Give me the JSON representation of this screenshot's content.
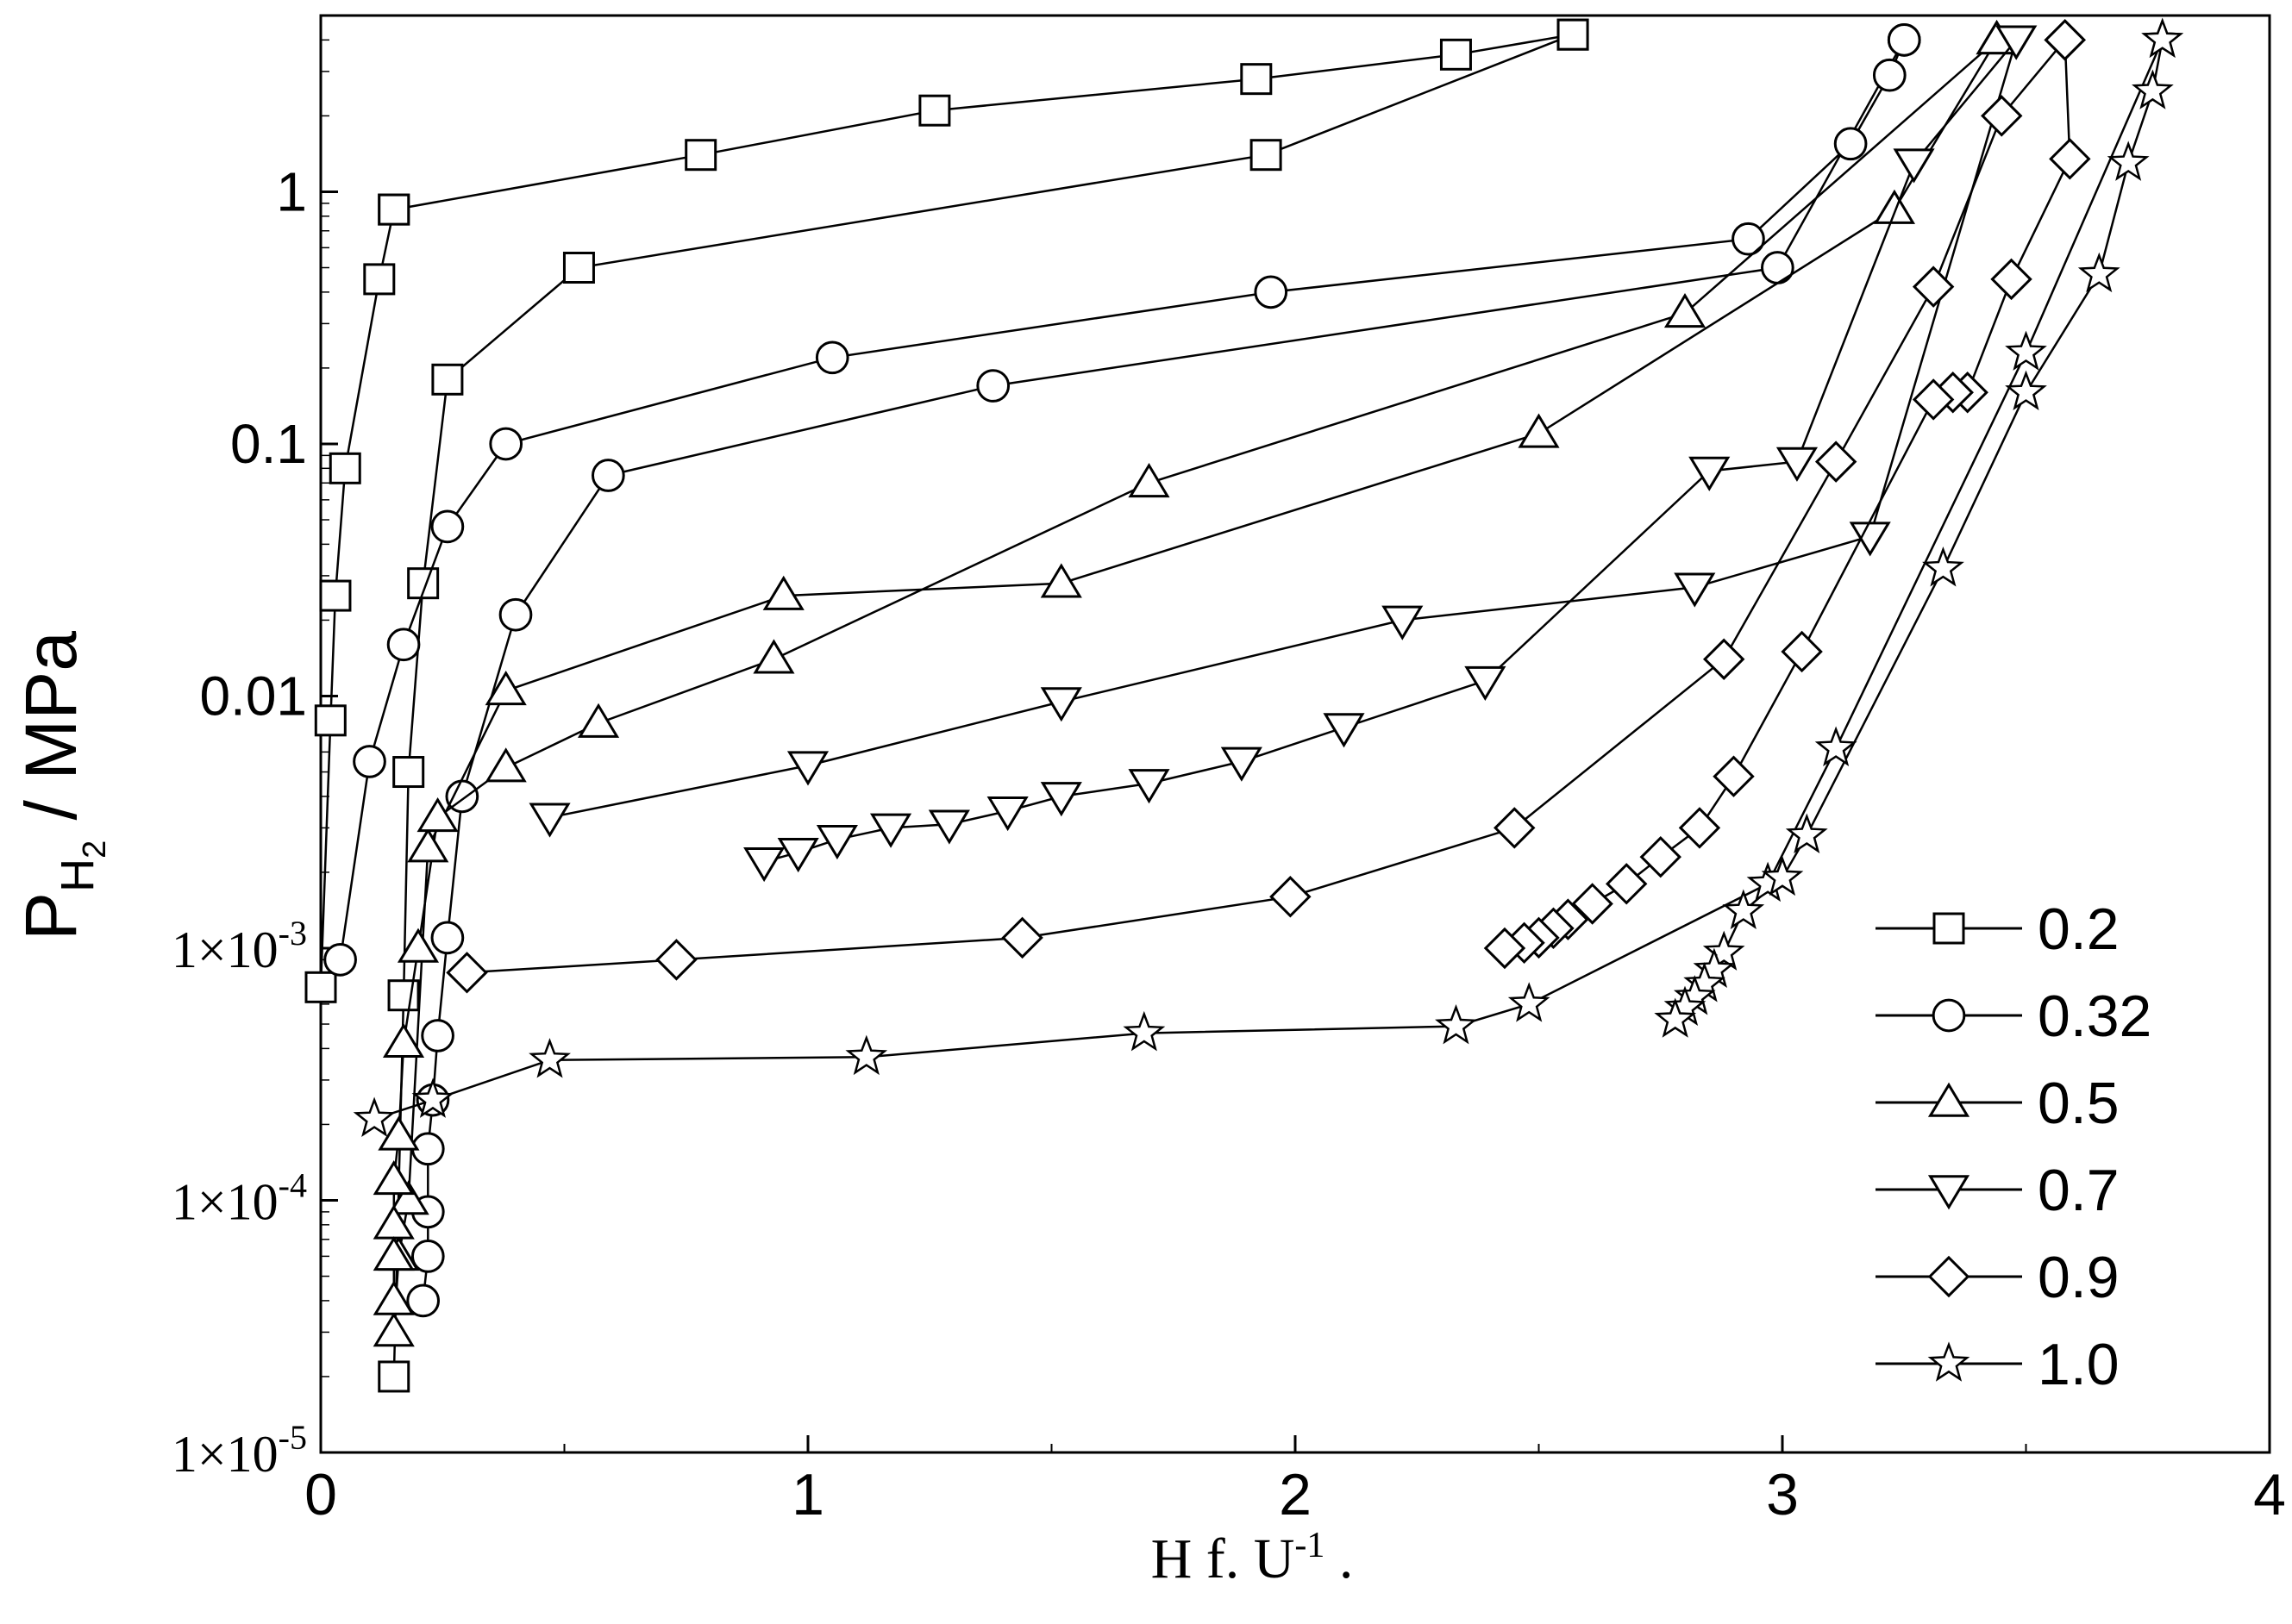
{
  "chart_data": {
    "type": "scatter",
    "title": "",
    "xlabel": "H f. U-1 .",
    "xlabel_parts": {
      "base": "H f. U",
      "sup": "-1",
      "suffix": " ."
    },
    "ylabel": "P_H2 / MPa",
    "ylabel_parts": {
      "p": "P",
      "h": "H",
      "two": "2",
      "rest": " / MPa"
    },
    "xlim": [
      0,
      4
    ],
    "ylim": [
      1e-05,
      5
    ],
    "y_scale": "log",
    "grid": false,
    "legend_position": "lower-right",
    "x_ticks": [
      "0",
      "1",
      "2",
      "3",
      "4"
    ],
    "y_ticks": [
      {
        "value": 1,
        "label": "1"
      },
      {
        "value": 0.1,
        "label": "0.1"
      },
      {
        "value": 0.01,
        "label": "0.01"
      },
      {
        "value": 0.001,
        "label": "1×10",
        "sup": "-3"
      },
      {
        "value": 0.0001,
        "label": "1×10",
        "sup": "-4"
      },
      {
        "value": 1e-05,
        "label": "1×10",
        "sup": "-5"
      }
    ],
    "series": [
      {
        "name": "0.2",
        "marker": "square",
        "segments": [
          {
            "x": [
              0.0,
              0.02,
              0.03,
              0.05,
              0.12,
              0.15
            ],
            "y": [
              0.0007,
              0.008,
              0.025,
              0.08,
              0.45,
              0.85
            ]
          },
          {
            "x": [
              0.15,
              0.78,
              1.26,
              1.92,
              2.33,
              2.57
            ],
            "y": [
              0.85,
              1.4,
              2.1,
              2.8,
              3.5,
              4.2
            ]
          },
          {
            "x": [
              2.57,
              1.94,
              0.53,
              0.26,
              0.21,
              0.18,
              0.17,
              0.15
            ],
            "y": [
              4.2,
              1.4,
              0.5,
              0.18,
              0.028,
              0.005,
              0.00065,
              2e-05
            ]
          }
        ]
      },
      {
        "name": "0.32",
        "marker": "circle",
        "segments": [
          {
            "x": [
              0.04,
              0.1,
              0.17,
              0.26,
              0.38,
              1.05,
              1.95,
              2.93,
              3.14,
              3.22,
              3.25
            ],
            "y": [
              0.0009,
              0.0055,
              0.016,
              0.047,
              0.1,
              0.22,
              0.4,
              0.65,
              1.55,
              2.9,
              4.0
            ]
          },
          {
            "x": [
              3.25,
              2.99,
              1.38,
              0.59,
              0.4,
              0.29,
              0.26,
              0.24,
              0.23,
              0.22,
              0.22,
              0.22,
              0.21
            ],
            "y": [
              4.0,
              0.5,
              0.17,
              0.075,
              0.021,
              0.004,
              0.0011,
              0.00045,
              0.00025,
              0.00016,
              9e-05,
              6e-05,
              4e-05
            ]
          }
        ]
      },
      {
        "name": "0.5",
        "marker": "triangle-up",
        "segments": [
          {
            "x": [
              0.15,
              0.16,
              0.18,
              0.22,
              0.38,
              0.95,
              1.52,
              2.5,
              3.23,
              3.44
            ],
            "y": [
              3e-05,
              6e-05,
              0.0001,
              0.0025,
              0.0105,
              0.025,
              0.028,
              0.11,
              0.85,
              4.0
            ]
          },
          {
            "x": [
              3.44,
              2.8,
              1.7,
              0.93,
              0.57,
              0.38,
              0.24,
              0.2,
              0.17,
              0.16,
              0.15,
              0.15,
              0.15,
              0.15
            ],
            "y": [
              4.0,
              0.33,
              0.07,
              0.014,
              0.0078,
              0.0052,
              0.0033,
              0.001,
              0.00042,
              0.00018,
              0.00012,
              8e-05,
              6e-05,
              4e-05
            ]
          }
        ]
      },
      {
        "name": "0.7",
        "marker": "triangle-down",
        "segments": [
          {
            "x": [
              0.47,
              1.0,
              1.52,
              2.22,
              2.82,
              3.18,
              3.48
            ],
            "y": [
              0.0033,
              0.0053,
              0.0095,
              0.02,
              0.027,
              0.043,
              4.0
            ]
          },
          {
            "x": [
              3.48,
              3.27,
              3.03,
              2.85,
              2.39,
              2.1,
              1.89,
              1.7,
              1.52,
              1.41,
              1.29,
              1.17,
              1.06,
              0.98,
              0.91
            ],
            "y": [
              4.0,
              1.3,
              0.085,
              0.078,
              0.0115,
              0.0075,
              0.0055,
              0.0045,
              0.004,
              0.0035,
              0.0031,
              0.003,
              0.0027,
              0.0024,
              0.0022
            ]
          }
        ]
      },
      {
        "name": "0.9",
        "marker": "diamond",
        "segments": [
          {
            "x": [
              0.3,
              0.73,
              1.44,
              1.99,
              2.45,
              2.88,
              3.11,
              3.31,
              3.45,
              3.58
            ],
            "y": [
              0.0008,
              0.0009,
              0.0011,
              0.0016,
              0.003,
              0.014,
              0.085,
              0.42,
              2.0,
              4.0
            ]
          },
          {
            "x": [
              3.58,
              3.59,
              3.47,
              3.38,
              3.35,
              3.31,
              3.04,
              2.9,
              2.83,
              2.75,
              2.68,
              2.61,
              2.56,
              2.53,
              2.5,
              2.47,
              2.43
            ],
            "y": [
              4.0,
              1.35,
              0.45,
              0.16,
              0.16,
              0.15,
              0.015,
              0.0048,
              0.003,
              0.0023,
              0.0018,
              0.0015,
              0.0013,
              0.0012,
              0.0011,
              0.00105,
              0.001
            ]
          }
        ]
      },
      {
        "name": "1.0",
        "marker": "star",
        "segments": [
          {
            "x": [
              0.11,
              0.23,
              0.47,
              1.12,
              1.69,
              2.33,
              2.48,
              2.97,
              3.11,
              3.5,
              3.78
            ],
            "y": [
              0.00021,
              0.00025,
              0.00036,
              0.00037,
              0.00046,
              0.00049,
              0.0006,
              0.0018,
              0.0062,
              0.23,
              4.0
            ]
          },
          {
            "x": [
              3.78,
              3.76,
              3.71,
              3.65,
              3.5,
              3.33,
              3.05,
              3.0,
              2.92,
              2.88,
              2.86,
              2.84,
              2.82,
              2.8,
              2.78
            ],
            "y": [
              4.0,
              2.5,
              1.3,
              0.47,
              0.16,
              0.032,
              0.0028,
              0.0019,
              0.0014,
              0.00096,
              0.00082,
              0.00072,
              0.00064,
              0.00058,
              0.00052
            ]
          }
        ]
      }
    ]
  }
}
